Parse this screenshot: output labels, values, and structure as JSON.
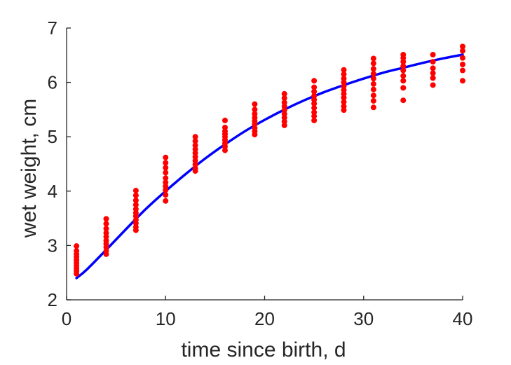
{
  "chart_data": {
    "type": "scatter",
    "title": "",
    "xlabel": "time since birth, d",
    "ylabel": "wet weight, cm",
    "xlim": [
      0,
      40
    ],
    "ylim": [
      2,
      7
    ],
    "xticks": [
      0,
      10,
      20,
      30,
      40
    ],
    "yticks": [
      2,
      3,
      4,
      5,
      6,
      7
    ],
    "grid": false,
    "legend": "none",
    "colors": {
      "points": "#ff0000",
      "fit": "#0000ff",
      "axes": "#262626"
    },
    "series": [
      {
        "type": "scatter",
        "points": [
          [
            1,
            2.99
          ],
          [
            1,
            2.9
          ],
          [
            1,
            2.84
          ],
          [
            1,
            2.79
          ],
          [
            1,
            2.73
          ],
          [
            1,
            2.68
          ],
          [
            1,
            2.63
          ],
          [
            1,
            2.58
          ],
          [
            1,
            2.53
          ],
          [
            1,
            2.48
          ],
          [
            4,
            3.49
          ],
          [
            4,
            3.4
          ],
          [
            4,
            3.31
          ],
          [
            4,
            3.23
          ],
          [
            4,
            3.16
          ],
          [
            4,
            3.09
          ],
          [
            4,
            3.03
          ],
          [
            4,
            2.97
          ],
          [
            4,
            2.9
          ],
          [
            4,
            2.84
          ],
          [
            7,
            4.01
          ],
          [
            7,
            3.92
          ],
          [
            7,
            3.83
          ],
          [
            7,
            3.75
          ],
          [
            7,
            3.67
          ],
          [
            7,
            3.6
          ],
          [
            7,
            3.54
          ],
          [
            7,
            3.47
          ],
          [
            7,
            3.41
          ],
          [
            7,
            3.34
          ],
          [
            7,
            3.28
          ],
          [
            10,
            4.62
          ],
          [
            10,
            4.52
          ],
          [
            10,
            4.43
          ],
          [
            10,
            4.34
          ],
          [
            10,
            4.24
          ],
          [
            10,
            4.16
          ],
          [
            10,
            4.09
          ],
          [
            10,
            4.02
          ],
          [
            10,
            3.93
          ],
          [
            10,
            3.82
          ],
          [
            13,
            5.0
          ],
          [
            13,
            4.92
          ],
          [
            13,
            4.84
          ],
          [
            13,
            4.77
          ],
          [
            13,
            4.7
          ],
          [
            13,
            4.63
          ],
          [
            13,
            4.56
          ],
          [
            13,
            4.49
          ],
          [
            13,
            4.42
          ],
          [
            13,
            4.37
          ],
          [
            16,
            5.3
          ],
          [
            16,
            5.17
          ],
          [
            16,
            5.1
          ],
          [
            16,
            5.05
          ],
          [
            16,
            5.0
          ],
          [
            16,
            4.94
          ],
          [
            16,
            4.88
          ],
          [
            16,
            4.82
          ],
          [
            16,
            4.75
          ],
          [
            19,
            5.6
          ],
          [
            19,
            5.5
          ],
          [
            19,
            5.42
          ],
          [
            19,
            5.35
          ],
          [
            19,
            5.29
          ],
          [
            19,
            5.23
          ],
          [
            19,
            5.16
          ],
          [
            19,
            5.1
          ],
          [
            19,
            5.04
          ],
          [
            22,
            5.79
          ],
          [
            22,
            5.71
          ],
          [
            22,
            5.63
          ],
          [
            22,
            5.56
          ],
          [
            22,
            5.49
          ],
          [
            22,
            5.42
          ],
          [
            22,
            5.35
          ],
          [
            22,
            5.28
          ],
          [
            22,
            5.21
          ],
          [
            25,
            6.03
          ],
          [
            25,
            5.91
          ],
          [
            25,
            5.83
          ],
          [
            25,
            5.75
          ],
          [
            25,
            5.68
          ],
          [
            25,
            5.61
          ],
          [
            25,
            5.53
          ],
          [
            25,
            5.45
          ],
          [
            25,
            5.38
          ],
          [
            25,
            5.3
          ],
          [
            28,
            6.23
          ],
          [
            28,
            6.15
          ],
          [
            28,
            6.07
          ],
          [
            28,
            6.0
          ],
          [
            28,
            5.93
          ],
          [
            28,
            5.86
          ],
          [
            28,
            5.79
          ],
          [
            28,
            5.72
          ],
          [
            28,
            5.64
          ],
          [
            28,
            5.56
          ],
          [
            28,
            5.49
          ],
          [
            31,
            6.44
          ],
          [
            31,
            6.35
          ],
          [
            31,
            6.25
          ],
          [
            31,
            6.16
          ],
          [
            31,
            6.07
          ],
          [
            31,
            5.97
          ],
          [
            31,
            5.87
          ],
          [
            31,
            5.76
          ],
          [
            31,
            5.66
          ],
          [
            31,
            5.54
          ],
          [
            34,
            6.51
          ],
          [
            34,
            6.45
          ],
          [
            34,
            6.38
          ],
          [
            34,
            6.3
          ],
          [
            34,
            6.22
          ],
          [
            34,
            6.12
          ],
          [
            34,
            6.03
          ],
          [
            34,
            5.9
          ],
          [
            34,
            5.67
          ],
          [
            37,
            6.51
          ],
          [
            37,
            6.38
          ],
          [
            37,
            6.26
          ],
          [
            37,
            6.17
          ],
          [
            37,
            6.08
          ],
          [
            37,
            5.95
          ],
          [
            40,
            6.66
          ],
          [
            40,
            6.58
          ],
          [
            40,
            6.45
          ],
          [
            40,
            6.33
          ],
          [
            40,
            6.22
          ],
          [
            40,
            6.03
          ]
        ]
      },
      {
        "type": "line",
        "x": [
          1,
          2,
          4,
          6,
          8,
          10,
          12,
          14,
          16,
          18,
          20,
          22,
          24,
          26,
          28,
          30,
          32,
          34,
          36,
          38,
          40
        ],
        "y": [
          2.4,
          2.55,
          2.92,
          3.3,
          3.67,
          4.0,
          4.31,
          4.6,
          4.86,
          5.1,
          5.31,
          5.5,
          5.67,
          5.82,
          5.95,
          6.07,
          6.18,
          6.27,
          6.36,
          6.44,
          6.51
        ]
      }
    ]
  }
}
